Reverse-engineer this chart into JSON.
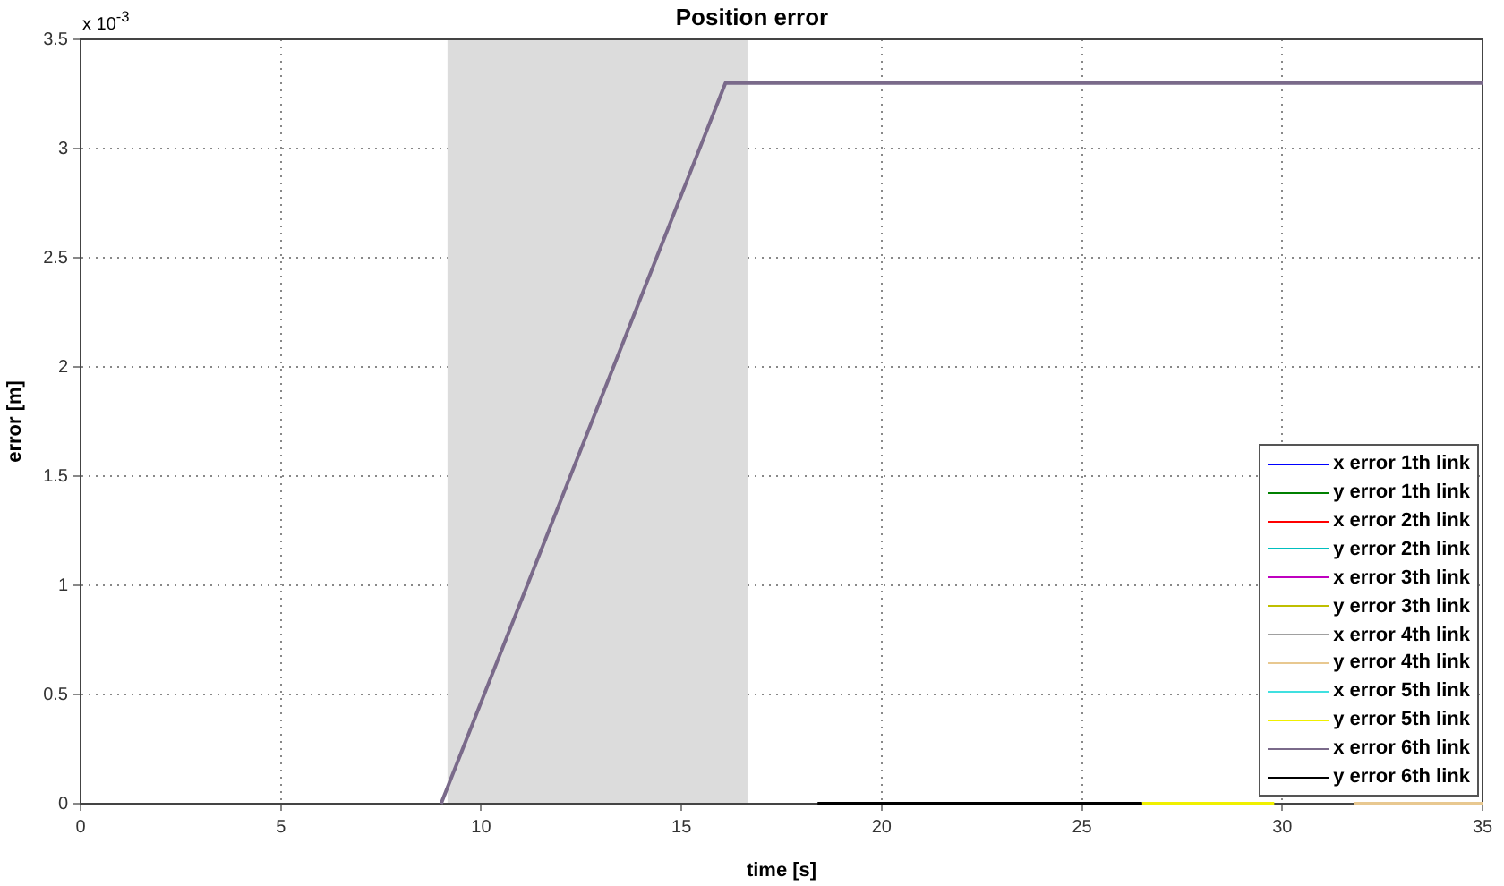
{
  "chart_data": {
    "type": "line",
    "title": "Position error",
    "xlabel": "time [s]",
    "ylabel": "error [m]",
    "annotations": [
      "x 10$^{-3}$"
    ],
    "xlim": [
      0,
      35
    ],
    "xticks": [
      0,
      5,
      10,
      15,
      20,
      25,
      30,
      35
    ],
    "ylim": [
      0,
      3.5
    ],
    "yticks": [
      0,
      0.5,
      1,
      1.5,
      2,
      2.5,
      3,
      3.5
    ],
    "grid": true,
    "legend": "bottom right",
    "line_style": "solid",
    "marker": "none",
    "bands": [
      {
        "axis": "x",
        "from": 9.16,
        "to": 16.65,
        "color": "#dcdcdc"
      }
    ],
    "series": [
      {
        "name": "x error 1th link",
        "color": "#0000ff"
      },
      {
        "name": "y error 1th link",
        "color": "#008000"
      },
      {
        "name": "x error 2th link",
        "color": "#ff0000"
      },
      {
        "name": "y error 2th link",
        "color": "#00bfbf"
      },
      {
        "name": "x error 3th link",
        "color": "#bf00bf"
      },
      {
        "name": "y error 3th link",
        "color": "#bfbf00"
      },
      {
        "name": "x error 4th link",
        "color": "#a0a0a0"
      },
      {
        "name": "y error 4th link",
        "color": "#e8c890",
        "x": [
          31.8,
          35
        ],
        "values": [
          0,
          0
        ]
      },
      {
        "name": "x error 5th link",
        "color": "#40e0e0"
      },
      {
        "name": "y error 5th link",
        "color": "#f0f000",
        "x": [
          26.5,
          29.8
        ],
        "values": [
          0,
          0
        ]
      },
      {
        "name": "x error 6th link",
        "color": "#7a6a8a",
        "x": [
          9.0,
          16.1,
          35
        ],
        "values": [
          0,
          3.3,
          3.3
        ]
      },
      {
        "name": "y error 6th link",
        "color": "#000000",
        "x": [
          18.4,
          26.5
        ],
        "values": [
          0,
          0
        ]
      }
    ]
  }
}
